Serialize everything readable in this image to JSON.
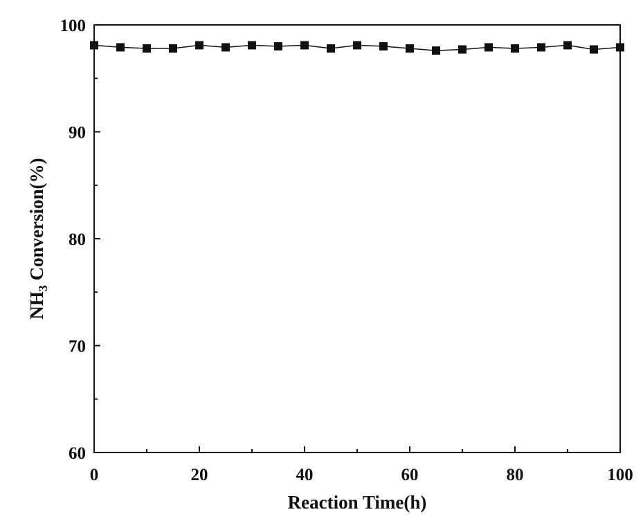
{
  "chart_data": {
    "type": "line",
    "xlabel": "Reaction Time(h)",
    "ylabel": {
      "prefix": "NH",
      "subscript": "3",
      "suffix": " Conversion(%)"
    },
    "xlim": [
      0,
      100
    ],
    "ylim": [
      60,
      100
    ],
    "x_ticks": [
      0,
      20,
      40,
      60,
      80,
      100
    ],
    "y_ticks": [
      60,
      70,
      80,
      90,
      100
    ],
    "grid": false,
    "legend": "none",
    "marker": "square",
    "series_color": "#111111",
    "series": [
      {
        "x": [
          0,
          5,
          10,
          15,
          20,
          25,
          30,
          35,
          40,
          45,
          50,
          55,
          60,
          65,
          70,
          75,
          80,
          85,
          90,
          95,
          100
        ],
        "y": [
          98.1,
          97.9,
          97.8,
          97.8,
          98.1,
          97.9,
          98.1,
          98.0,
          98.1,
          97.8,
          98.1,
          98.0,
          97.8,
          97.6,
          97.7,
          97.9,
          97.8,
          97.9,
          98.1,
          97.7,
          97.9
        ]
      }
    ]
  }
}
